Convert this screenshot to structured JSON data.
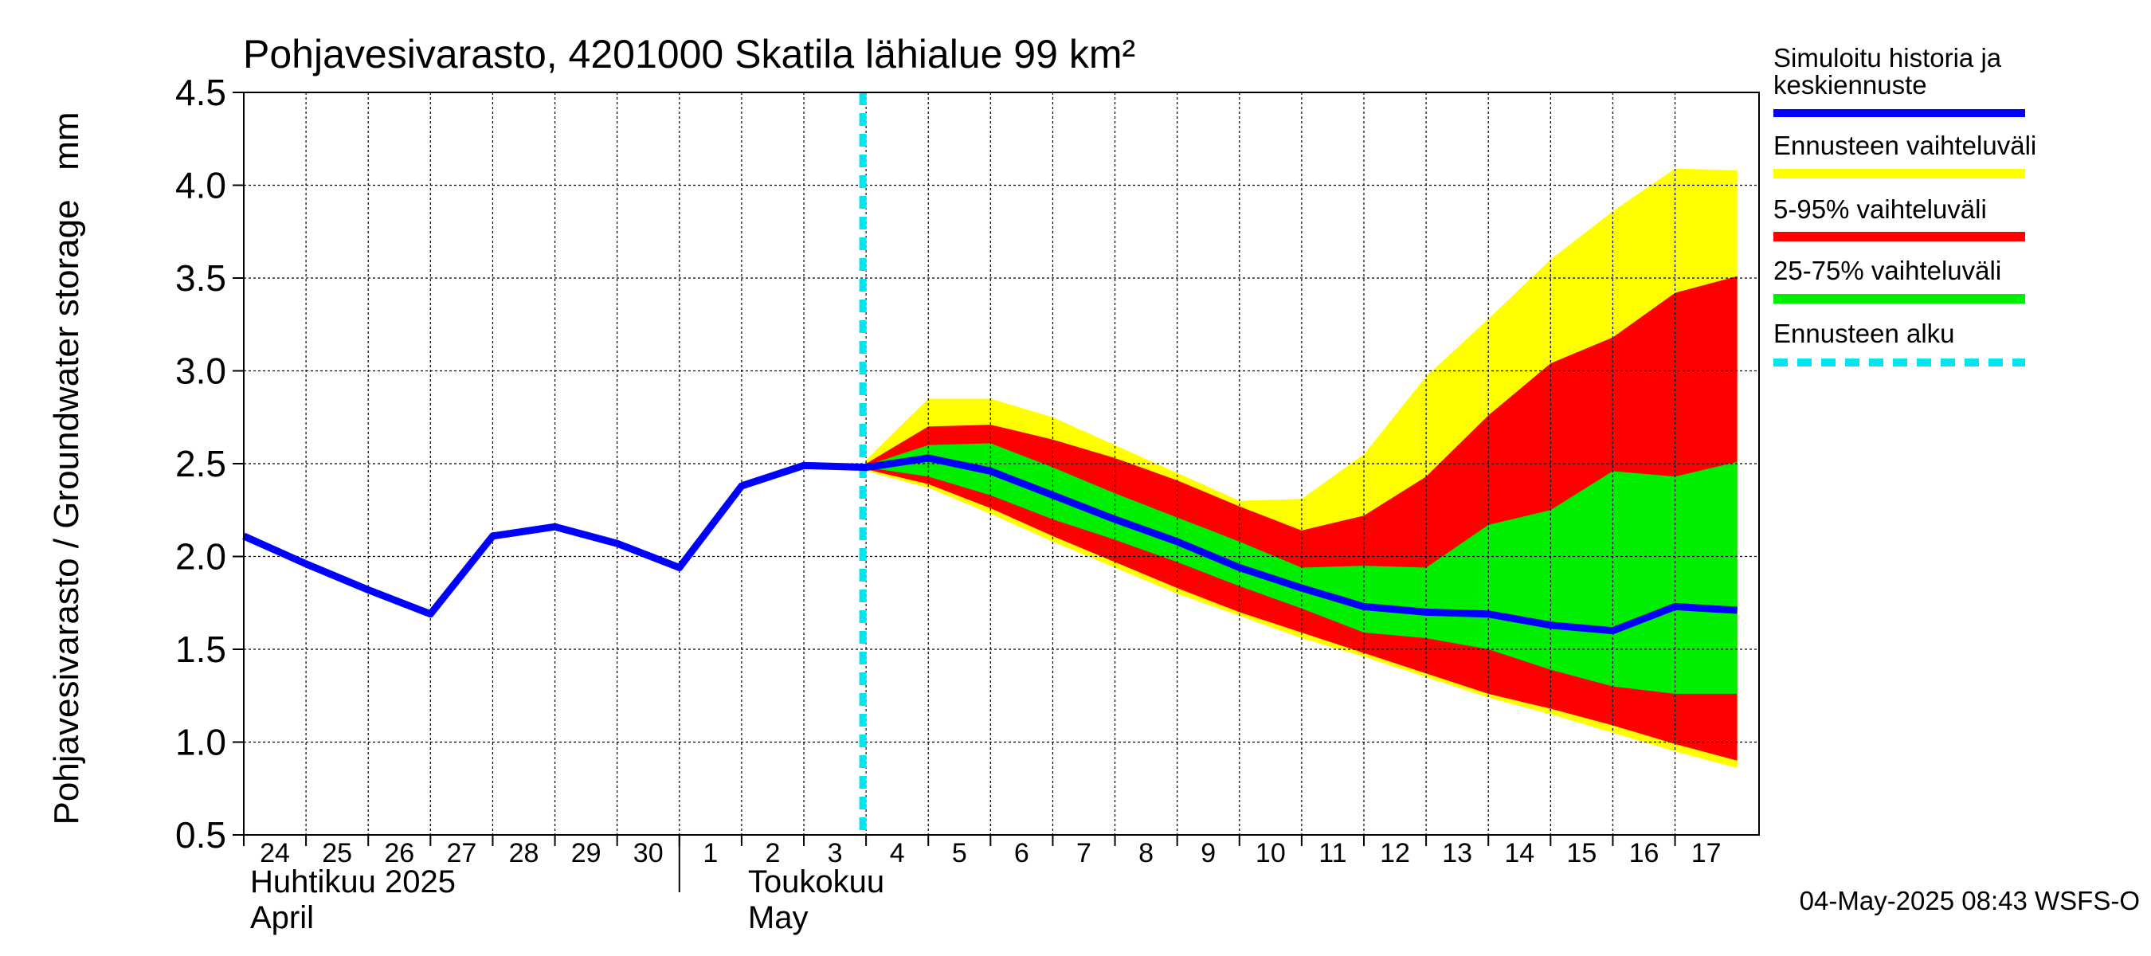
{
  "chart_data": {
    "type": "area",
    "title": "Pohjavesivarasto, 4201000 Skatila lähialue 99 km²",
    "ylabel": "Pohjavesivarasto / Groundwater storage   mm",
    "ylim": [
      0.5,
      4.5
    ],
    "yticks": [
      0.5,
      1.0,
      1.5,
      2.0,
      2.5,
      3.0,
      3.5,
      4.0,
      4.5
    ],
    "ytick_labels": [
      "0.5",
      "1.0",
      "1.5",
      "2.0",
      "2.5",
      "3.0",
      "3.5",
      "4.0",
      "4.5"
    ],
    "xlim": [
      0,
      24
    ],
    "x_tick_labels": [
      "24",
      "25",
      "26",
      "27",
      "28",
      "29",
      "30",
      "1",
      "2",
      "3",
      "4",
      "5",
      "6",
      "7",
      "8",
      "9",
      "10",
      "11",
      "12",
      "13",
      "14",
      "15",
      "16",
      "17"
    ],
    "month_labels": [
      {
        "line1": "Huhtikuu  2025",
        "line2": "April",
        "day_index": 0
      },
      {
        "line1": "Toukokuu",
        "line2": "May",
        "day_index": 8
      }
    ],
    "month_separator_index": 7,
    "grid": true,
    "legend_position": "right",
    "forecast_start": 10,
    "history": {
      "name": "Simuloitu historia ja keskiennuste",
      "x": [
        0,
        1,
        2,
        3,
        4,
        5,
        6,
        7,
        8,
        9,
        10
      ],
      "y": [
        2.11,
        1.96,
        1.82,
        1.69,
        2.11,
        2.16,
        2.07,
        1.94,
        2.38,
        2.49,
        2.48
      ]
    },
    "median": {
      "x": [
        10,
        11,
        12,
        13,
        14,
        15,
        16,
        17,
        18,
        19,
        20,
        21,
        22,
        23,
        24
      ],
      "y": [
        2.48,
        2.53,
        2.46,
        2.33,
        2.2,
        2.08,
        1.94,
        1.83,
        1.73,
        1.7,
        1.69,
        1.63,
        1.6,
        1.73,
        1.71
      ]
    },
    "band_x": [
      10,
      11,
      12,
      13,
      14,
      15,
      16,
      17,
      18,
      19,
      20,
      21,
      22,
      23,
      24
    ],
    "bands": [
      {
        "name": "Ennusteen vaihteluväli",
        "color": "#ffff00",
        "upper": [
          2.52,
          2.85,
          2.85,
          2.75,
          2.6,
          2.45,
          2.3,
          2.31,
          2.55,
          2.97,
          3.28,
          3.6,
          3.86,
          4.09,
          4.08
        ],
        "lower": [
          2.46,
          2.37,
          2.23,
          2.08,
          1.94,
          1.8,
          1.68,
          1.56,
          1.46,
          1.35,
          1.24,
          1.15,
          1.05,
          0.95,
          0.86
        ]
      },
      {
        "name": "5-95% vaihteluväli",
        "color": "#ff0000",
        "upper": [
          2.5,
          2.7,
          2.71,
          2.63,
          2.53,
          2.41,
          2.27,
          2.14,
          2.22,
          2.43,
          2.76,
          3.04,
          3.18,
          3.42,
          3.51
        ],
        "lower": [
          2.47,
          2.39,
          2.26,
          2.11,
          1.97,
          1.83,
          1.7,
          1.59,
          1.48,
          1.37,
          1.26,
          1.18,
          1.09,
          0.99,
          0.9
        ]
      },
      {
        "name": "25-75% vaihteluväli",
        "color": "#00ee00",
        "upper": [
          2.49,
          2.6,
          2.61,
          2.48,
          2.34,
          2.21,
          2.08,
          1.94,
          1.95,
          1.94,
          2.17,
          2.25,
          2.46,
          2.43,
          2.51
        ],
        "lower": [
          2.48,
          2.43,
          2.33,
          2.2,
          2.09,
          1.97,
          1.84,
          1.72,
          1.59,
          1.56,
          1.5,
          1.39,
          1.3,
          1.26,
          1.26
        ]
      }
    ]
  },
  "legend": {
    "items": [
      {
        "label": "Simuloitu historia ja keskiennuste",
        "line1": "Simuloitu historia ja",
        "line2": "keskiennuste",
        "color": "#0000ff",
        "style": "solid"
      },
      {
        "label": "Ennusteen vaihteluväli",
        "color": "#ffff00",
        "style": "solid"
      },
      {
        "label": "5-95% vaihteluväli",
        "color": "#ff0000",
        "style": "solid"
      },
      {
        "label": "25-75% vaihteluväli",
        "color": "#00ee00",
        "style": "solid"
      },
      {
        "label": "Ennusteen alku",
        "color": "#00e5ee",
        "style": "dashed"
      }
    ]
  },
  "footer": {
    "timestamp": "04-May-2025 08:43 WSFS-O"
  },
  "colors": {
    "history_line": "#0000ff",
    "forecast_start_line": "#00e5ee",
    "grid": "#000000"
  }
}
